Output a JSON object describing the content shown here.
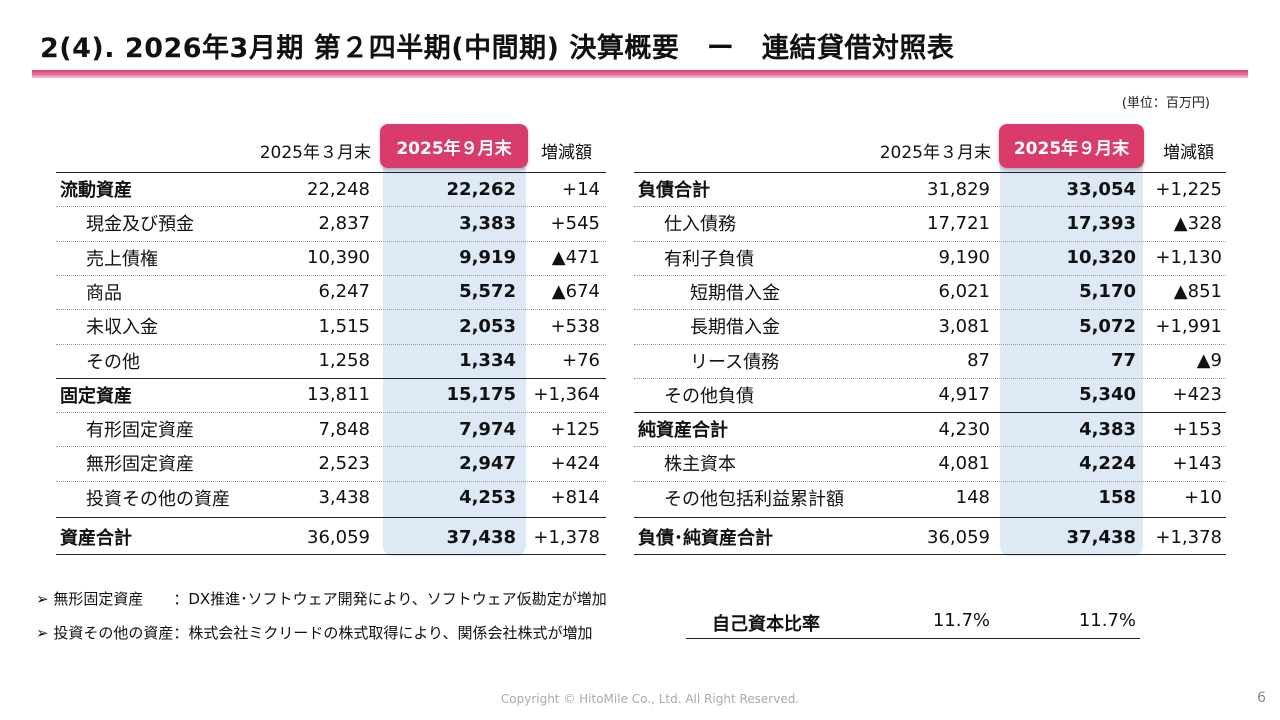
{
  "title": "2(4). 2026年3月期 第２四半期(中間期) 決算概要　ー　連結貸借対照表",
  "unit": "(単位：百万円)",
  "headers": {
    "prev": "2025年３月末",
    "curr": "2025年９月末",
    "diff": "増減額"
  },
  "left_rows": [
    {
      "label": "流動資産",
      "prev": "22,248",
      "curr": "22,262",
      "diff": "+14",
      "bold": true,
      "indent": 0
    },
    {
      "label": "現金及び預金",
      "prev": "2,837",
      "curr": "3,383",
      "diff": "+545",
      "bold": false,
      "indent": 1
    },
    {
      "label": "売上債権",
      "prev": "10,390",
      "curr": "9,919",
      "diff": "▲471",
      "bold": false,
      "indent": 1
    },
    {
      "label": "商品",
      "prev": "6,247",
      "curr": "5,572",
      "diff": "▲674",
      "bold": false,
      "indent": 1
    },
    {
      "label": "未収入金",
      "prev": "1,515",
      "curr": "2,053",
      "diff": "+538",
      "bold": false,
      "indent": 1
    },
    {
      "label": "その他",
      "prev": "1,258",
      "curr": "1,334",
      "diff": "+76",
      "bold": false,
      "indent": 1
    },
    {
      "label": "固定資産",
      "prev": "13,811",
      "curr": "15,175",
      "diff": "+1,364",
      "bold": true,
      "indent": 0
    },
    {
      "label": "有形固定資産",
      "prev": "7,848",
      "curr": "7,974",
      "diff": "+125",
      "bold": false,
      "indent": 1
    },
    {
      "label": "無形固定資産",
      "prev": "2,523",
      "curr": "2,947",
      "diff": "+424",
      "bold": false,
      "indent": 1
    },
    {
      "label": "投資その他の資産",
      "prev": "3,438",
      "curr": "4,253",
      "diff": "+814",
      "bold": false,
      "indent": 1
    },
    {
      "label": "資産合計",
      "prev": "36,059",
      "curr": "37,438",
      "diff": "+1,378",
      "bold": true,
      "indent": 0
    }
  ],
  "right_rows": [
    {
      "label": "負債合計",
      "prev": "31,829",
      "curr": "33,054",
      "diff": "+1,225",
      "bold": true,
      "indent": 0
    },
    {
      "label": "仕入債務",
      "prev": "17,721",
      "curr": "17,393",
      "diff": "▲328",
      "bold": false,
      "indent": 1
    },
    {
      "label": "有利子負債",
      "prev": "9,190",
      "curr": "10,320",
      "diff": "+1,130",
      "bold": false,
      "indent": 1
    },
    {
      "label": "短期借入金",
      "prev": "6,021",
      "curr": "5,170",
      "diff": "▲851",
      "bold": false,
      "indent": 2
    },
    {
      "label": "長期借入金",
      "prev": "3,081",
      "curr": "5,072",
      "diff": "+1,991",
      "bold": false,
      "indent": 2
    },
    {
      "label": "リース債務",
      "prev": "87",
      "curr": "77",
      "diff": "▲9",
      "bold": false,
      "indent": 2
    },
    {
      "label": "その他負債",
      "prev": "4,917",
      "curr": "5,340",
      "diff": "+423",
      "bold": false,
      "indent": 1
    },
    {
      "label": "純資産合計",
      "prev": "4,230",
      "curr": "4,383",
      "diff": "+153",
      "bold": true,
      "indent": 0
    },
    {
      "label": "株主資本",
      "prev": "4,081",
      "curr": "4,224",
      "diff": "+143",
      "bold": false,
      "indent": 1
    },
    {
      "label": "その他包括利益累計額",
      "prev": "148",
      "curr": "158",
      "diff": "+10",
      "bold": false,
      "indent": 1
    },
    {
      "label": "負債･純資産合計",
      "prev": "36,059",
      "curr": "37,438",
      "diff": "+1,378",
      "bold": true,
      "indent": 0
    }
  ],
  "notes": [
    "➢ 無形固定資産　　：DX推進･ソフトウェア開発により、ソフトウェア仮勘定が増加",
    "➢ 投資その他の資産：株式会社ミクリードの株式取得により、関係会社株式が増加"
  ],
  "equity_ratio": {
    "label": "自己資本比率",
    "prev": "11.7%",
    "curr": "11.7%"
  },
  "footer": "Copyright © HitoMile Co., Ltd. All Right Reserved.",
  "page_number": "6",
  "colors": {
    "accent": "#d93b6a",
    "highlight": "#dde9f5"
  }
}
